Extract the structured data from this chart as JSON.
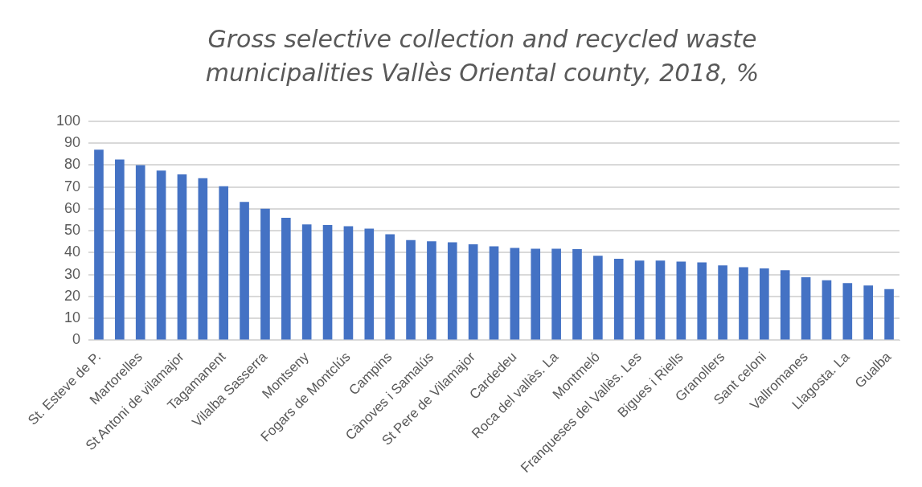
{
  "chart_data": {
    "type": "bar",
    "title": "Gross selective collection and recycled waste municipalities Vallès Oriental county, 2018, %",
    "categories": [
      "St. Esteve de P.",
      null,
      "Martorelles",
      null,
      "St Antoni de vilamajor",
      null,
      "Tagamanent",
      null,
      "Vilalba Sasserra",
      null,
      "Montseny",
      null,
      "Fogars de Montclús",
      null,
      "Campins",
      null,
      "Cànoves i Samalús",
      null,
      "St Pere de Vilamajor",
      null,
      "Cardedeu",
      null,
      "Roca del vallès. La",
      null,
      "Montmeló",
      null,
      "Franqueses del Vallès. Les",
      null,
      "Bigues i Riells",
      null,
      "Granollers",
      null,
      "Sant celoni",
      null,
      "Vallromanes",
      null,
      "Llagosta. La",
      null,
      "Gualba"
    ],
    "values": [
      87,
      82.5,
      79.9,
      77.5,
      75.7,
      74,
      70.3,
      63.2,
      60,
      55.9,
      52.9,
      52.6,
      52.1,
      51,
      48.4,
      45.7,
      45.2,
      44.7,
      43.8,
      42.9,
      42.2,
      41.8,
      41.8,
      41.6,
      38.6,
      37.2,
      36.4,
      36.4,
      35.9,
      35.6,
      34.2,
      33.4,
      32.8,
      32,
      28.8,
      27.4,
      26.1,
      25,
      23.4
    ],
    "color": "#4472c4",
    "ylim": [
      0,
      100
    ],
    "yticks": [
      0,
      10,
      20,
      30,
      40,
      50,
      60,
      70,
      80,
      90,
      100
    ],
    "grid": "y",
    "legend": false
  }
}
